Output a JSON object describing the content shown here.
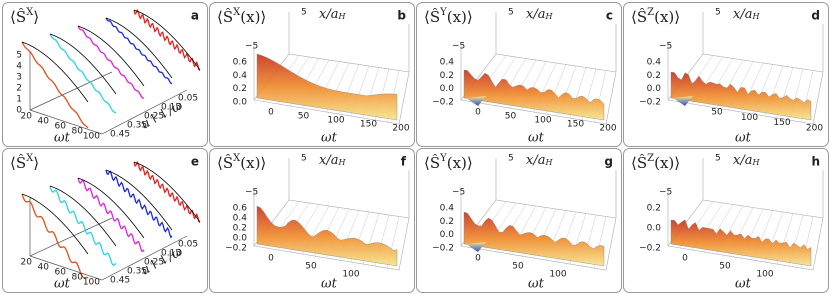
{
  "panels": [
    {
      "letter": "a",
      "title": {
        "pre": "⟨Ŝ",
        "sup": "X",
        "post": "⟩"
      },
      "z_ticks": [
        "0",
        "1",
        "2",
        "3",
        "4",
        "5"
      ],
      "t_ticks": [
        "20",
        "40",
        "60",
        "80",
        "100"
      ],
      "t_label": "ωt",
      "u_ticks": [
        "0.45",
        "0.35",
        "0.25",
        "0.15",
        "0.05"
      ],
      "u_label": "u↑↓/ω"
    },
    {
      "letter": "b",
      "title": {
        "pre": "⟨Ŝ",
        "sup": "X",
        "post": "(x)⟩"
      },
      "x_top": "5",
      "x_label": {
        "main": "x/a",
        "sub": "H"
      },
      "x_bottom": "−5",
      "z_ticks": [
        "0.6",
        "0.4",
        "0.2",
        "0.0"
      ],
      "t_ticks": [
        "0",
        "50",
        "100",
        "150",
        "200"
      ],
      "t_label": "ωt"
    },
    {
      "letter": "c",
      "title": {
        "pre": "⟨Ŝ",
        "sup": "Y",
        "post": "(x)⟩"
      },
      "x_top": "5",
      "x_label": {
        "main": "x/a",
        "sub": "H"
      },
      "x_bottom": "−5",
      "z_ticks": [
        "0.4",
        "0.2",
        "0.0",
        "−0.2"
      ],
      "t_ticks": [
        "0",
        "50",
        "100",
        "150",
        "200"
      ],
      "t_label": "ωt"
    },
    {
      "letter": "d",
      "title": {
        "pre": "⟨Ŝ",
        "sup": "Z",
        "post": "(x)⟩"
      },
      "x_top": "5",
      "x_label": {
        "main": "x/a",
        "sub": "H"
      },
      "x_bottom": "−5",
      "z_ticks": [
        "0.4",
        "0.2",
        "0.0",
        "−0.2"
      ],
      "t_ticks": [
        "50",
        "100",
        "150",
        "200"
      ],
      "t_label": "ωt"
    },
    {
      "letter": "e",
      "title": {
        "pre": "⟨Ŝ",
        "sup": "X",
        "post": "⟩"
      },
      "z_ticks": [],
      "t_ticks": [
        "20",
        "40",
        "60",
        "80",
        "100"
      ],
      "t_label": "ωt",
      "u_ticks": [
        "0.45",
        "0.35",
        "0.25",
        "0.15",
        "0.05"
      ],
      "u_label": "u↑↓/ω"
    },
    {
      "letter": "f",
      "title": {
        "pre": "⟨Ŝ",
        "sup": "X",
        "post": "(x)⟩"
      },
      "x_top": "5",
      "x_label": {
        "main": "x/a",
        "sub": "H"
      },
      "x_bottom": "−5",
      "z_ticks": [
        "0.6",
        "0.4",
        "0.2",
        "0.0",
        "−0.2"
      ],
      "t_ticks": [
        "0",
        "50",
        "100"
      ],
      "t_label": "ωt"
    },
    {
      "letter": "g",
      "title": {
        "pre": "⟨Ŝ",
        "sup": "Y",
        "post": "(x)⟩"
      },
      "x_top": "5",
      "x_label": {
        "main": "x/a",
        "sub": "H"
      },
      "x_bottom": "−5",
      "z_ticks": [
        "0.4",
        "0.2",
        "0.0",
        "−0.2"
      ],
      "t_ticks": [
        "0",
        "50",
        "100"
      ],
      "t_label": "ωt"
    },
    {
      "letter": "h",
      "title": {
        "pre": "⟨Ŝ",
        "sup": "Z",
        "post": "(x)⟩"
      },
      "x_top": "5",
      "x_label": {
        "main": "x/a",
        "sub": "H"
      },
      "x_bottom": "−5",
      "z_ticks": [
        "0.2",
        "0.0",
        "−0.2"
      ],
      "t_ticks": [
        "0",
        "50",
        "100"
      ],
      "t_label": "ωt"
    }
  ]
}
